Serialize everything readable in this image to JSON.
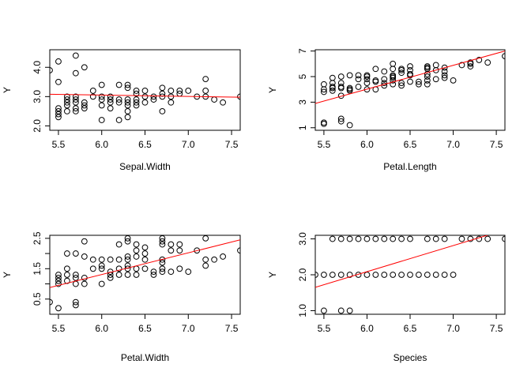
{
  "chart_data": [
    {
      "type": "scatter",
      "title": "",
      "xlabel": "Sepal.Width",
      "ylabel": "Y",
      "xlim": [
        5.4,
        7.6
      ],
      "ylim": [
        1.85,
        4.6
      ],
      "xticks": [
        5.5,
        6.0,
        6.5,
        7.0,
        7.5
      ],
      "yticks": [
        2.0,
        3.0,
        4.0
      ],
      "ytick_labels": [
        "2.0",
        "3.0",
        "4.0"
      ],
      "fit_line": {
        "x": [
          5.4,
          7.6
        ],
        "y": [
          3.08,
          2.98
        ],
        "color": "#ff0000"
      },
      "points": [
        [
          5.4,
          3.9
        ],
        [
          5.5,
          4.2
        ],
        [
          5.5,
          3.5
        ],
        [
          5.5,
          2.6
        ],
        [
          5.5,
          2.5
        ],
        [
          5.5,
          2.4
        ],
        [
          5.5,
          2.3
        ],
        [
          5.6,
          3.0
        ],
        [
          5.6,
          2.9
        ],
        [
          5.6,
          2.8
        ],
        [
          5.6,
          2.7
        ],
        [
          5.6,
          2.5
        ],
        [
          5.7,
          4.4
        ],
        [
          5.7,
          3.8
        ],
        [
          5.7,
          3.0
        ],
        [
          5.7,
          2.9
        ],
        [
          5.7,
          2.8
        ],
        [
          5.7,
          2.6
        ],
        [
          5.7,
          2.5
        ],
        [
          5.8,
          4.0
        ],
        [
          5.8,
          2.8
        ],
        [
          5.8,
          2.7
        ],
        [
          5.8,
          2.6
        ],
        [
          5.9,
          3.2
        ],
        [
          5.9,
          3.0
        ],
        [
          6.0,
          3.4
        ],
        [
          6.0,
          3.0
        ],
        [
          6.0,
          2.9
        ],
        [
          6.0,
          2.7
        ],
        [
          6.0,
          2.2
        ],
        [
          6.1,
          3.0
        ],
        [
          6.1,
          2.9
        ],
        [
          6.1,
          2.8
        ],
        [
          6.1,
          2.6
        ],
        [
          6.2,
          3.4
        ],
        [
          6.2,
          2.9
        ],
        [
          6.2,
          2.8
        ],
        [
          6.2,
          2.2
        ],
        [
          6.3,
          3.4
        ],
        [
          6.3,
          3.3
        ],
        [
          6.3,
          2.9
        ],
        [
          6.3,
          2.8
        ],
        [
          6.3,
          2.7
        ],
        [
          6.3,
          2.5
        ],
        [
          6.3,
          2.3
        ],
        [
          6.4,
          3.2
        ],
        [
          6.4,
          3.1
        ],
        [
          6.4,
          2.9
        ],
        [
          6.4,
          2.8
        ],
        [
          6.4,
          2.7
        ],
        [
          6.5,
          3.2
        ],
        [
          6.5,
          3.0
        ],
        [
          6.5,
          2.8
        ],
        [
          6.6,
          3.0
        ],
        [
          6.6,
          2.9
        ],
        [
          6.7,
          3.3
        ],
        [
          6.7,
          3.1
        ],
        [
          6.7,
          3.0
        ],
        [
          6.7,
          2.5
        ],
        [
          6.8,
          3.2
        ],
        [
          6.8,
          3.0
        ],
        [
          6.8,
          2.8
        ],
        [
          6.9,
          3.2
        ],
        [
          6.9,
          3.1
        ],
        [
          7.0,
          3.2
        ],
        [
          7.1,
          3.0
        ],
        [
          7.2,
          3.6
        ],
        [
          7.2,
          3.2
        ],
        [
          7.2,
          3.0
        ],
        [
          7.3,
          2.9
        ],
        [
          7.4,
          2.8
        ],
        [
          7.6,
          3.0
        ]
      ]
    },
    {
      "type": "scatter",
      "title": "",
      "xlabel": "Petal.Length",
      "ylabel": "Y",
      "xlim": [
        5.4,
        7.6
      ],
      "ylim": [
        0.8,
        7.1
      ],
      "xticks": [
        5.5,
        6.0,
        6.5,
        7.0,
        7.5
      ],
      "yticks": [
        1,
        3,
        5,
        7
      ],
      "ytick_labels": [
        "1",
        "3",
        "5",
        "7"
      ],
      "fit_line": {
        "x": [
          5.4,
          7.6
        ],
        "y": [
          2.9,
          7.0
        ],
        "color": "#ff0000"
      },
      "points": [
        [
          5.5,
          1.4
        ],
        [
          5.5,
          1.3
        ],
        [
          5.5,
          3.8
        ],
        [
          5.5,
          4.0
        ],
        [
          5.5,
          4.4
        ],
        [
          5.6,
          3.9
        ],
        [
          5.6,
          4.1
        ],
        [
          5.6,
          4.2
        ],
        [
          5.6,
          4.5
        ],
        [
          5.6,
          4.9
        ],
        [
          5.7,
          1.7
        ],
        [
          5.7,
          1.5
        ],
        [
          5.7,
          3.5
        ],
        [
          5.7,
          4.1
        ],
        [
          5.7,
          4.2
        ],
        [
          5.7,
          4.5
        ],
        [
          5.7,
          5.0
        ],
        [
          5.8,
          1.2
        ],
        [
          5.8,
          3.9
        ],
        [
          5.8,
          4.0
        ],
        [
          5.8,
          4.1
        ],
        [
          5.8,
          5.1
        ],
        [
          5.9,
          4.2
        ],
        [
          5.9,
          4.8
        ],
        [
          5.9,
          5.1
        ],
        [
          6.0,
          4.0
        ],
        [
          6.0,
          4.5
        ],
        [
          6.0,
          4.8
        ],
        [
          6.0,
          5.0
        ],
        [
          6.0,
          5.1
        ],
        [
          6.1,
          4.0
        ],
        [
          6.1,
          4.6
        ],
        [
          6.1,
          4.7
        ],
        [
          6.1,
          5.6
        ],
        [
          6.2,
          4.3
        ],
        [
          6.2,
          4.5
        ],
        [
          6.2,
          4.8
        ],
        [
          6.2,
          5.4
        ],
        [
          6.3,
          4.4
        ],
        [
          6.3,
          4.7
        ],
        [
          6.3,
          4.9
        ],
        [
          6.3,
          5.0
        ],
        [
          6.3,
          5.1
        ],
        [
          6.3,
          5.6
        ],
        [
          6.3,
          6.0
        ],
        [
          6.4,
          4.3
        ],
        [
          6.4,
          4.5
        ],
        [
          6.4,
          5.3
        ],
        [
          6.4,
          5.5
        ],
        [
          6.4,
          5.6
        ],
        [
          6.5,
          4.6
        ],
        [
          6.5,
          5.1
        ],
        [
          6.5,
          5.2
        ],
        [
          6.5,
          5.5
        ],
        [
          6.5,
          5.8
        ],
        [
          6.6,
          4.4
        ],
        [
          6.6,
          4.6
        ],
        [
          6.7,
          4.4
        ],
        [
          6.7,
          4.7
        ],
        [
          6.7,
          5.0
        ],
        [
          6.7,
          5.2
        ],
        [
          6.7,
          5.6
        ],
        [
          6.7,
          5.7
        ],
        [
          6.7,
          5.8
        ],
        [
          6.8,
          4.8
        ],
        [
          6.8,
          5.5
        ],
        [
          6.8,
          5.9
        ],
        [
          6.9,
          4.9
        ],
        [
          6.9,
          5.1
        ],
        [
          6.9,
          5.4
        ],
        [
          6.9,
          5.7
        ],
        [
          7.0,
          4.7
        ],
        [
          7.1,
          5.9
        ],
        [
          7.2,
          5.8
        ],
        [
          7.2,
          6.0
        ],
        [
          7.2,
          6.1
        ],
        [
          7.3,
          6.3
        ],
        [
          7.4,
          6.1
        ],
        [
          7.6,
          6.6
        ]
      ]
    },
    {
      "type": "scatter",
      "title": "",
      "xlabel": "Petal.Width",
      "ylabel": "Y",
      "xlim": [
        5.4,
        7.6
      ],
      "ylim": [
        0.0,
        2.6
      ],
      "xticks": [
        5.5,
        6.0,
        6.5,
        7.0,
        7.5
      ],
      "yticks": [
        0.5,
        1.0,
        1.5,
        2.0,
        2.5
      ],
      "ytick_labels": [
        "0.5",
        "",
        "1.5",
        "",
        "2.5"
      ],
      "fit_line": {
        "x": [
          5.4,
          7.6
        ],
        "y": [
          0.88,
          2.45
        ],
        "color": "#ff0000"
      },
      "points": [
        [
          5.4,
          0.4
        ],
        [
          5.5,
          1.3
        ],
        [
          5.5,
          1.2
        ],
        [
          5.5,
          1.1
        ],
        [
          5.5,
          1.0
        ],
        [
          5.5,
          0.2
        ],
        [
          5.6,
          2.0
        ],
        [
          5.6,
          1.5
        ],
        [
          5.6,
          1.3
        ],
        [
          5.6,
          1.1
        ],
        [
          5.7,
          2.0
        ],
        [
          5.7,
          1.3
        ],
        [
          5.7,
          1.2
        ],
        [
          5.7,
          1.0
        ],
        [
          5.7,
          0.4
        ],
        [
          5.7,
          0.3
        ],
        [
          5.8,
          2.4
        ],
        [
          5.8,
          1.9
        ],
        [
          5.8,
          1.2
        ],
        [
          5.8,
          1.0
        ],
        [
          5.9,
          1.8
        ],
        [
          5.9,
          1.5
        ],
        [
          6.0,
          1.8
        ],
        [
          6.0,
          1.6
        ],
        [
          6.0,
          1.5
        ],
        [
          6.0,
          1.0
        ],
        [
          6.1,
          1.8
        ],
        [
          6.1,
          1.4
        ],
        [
          6.1,
          1.3
        ],
        [
          6.1,
          1.2
        ],
        [
          6.2,
          2.3
        ],
        [
          6.2,
          1.8
        ],
        [
          6.2,
          1.5
        ],
        [
          6.2,
          1.3
        ],
        [
          6.3,
          2.5
        ],
        [
          6.3,
          2.4
        ],
        [
          6.3,
          1.9
        ],
        [
          6.3,
          1.8
        ],
        [
          6.3,
          1.6
        ],
        [
          6.3,
          1.5
        ],
        [
          6.3,
          1.3
        ],
        [
          6.4,
          2.3
        ],
        [
          6.4,
          2.1
        ],
        [
          6.4,
          1.9
        ],
        [
          6.4,
          1.5
        ],
        [
          6.4,
          1.3
        ],
        [
          6.5,
          2.2
        ],
        [
          6.5,
          2.0
        ],
        [
          6.5,
          1.8
        ],
        [
          6.5,
          1.5
        ],
        [
          6.6,
          1.4
        ],
        [
          6.6,
          1.3
        ],
        [
          6.7,
          2.5
        ],
        [
          6.7,
          2.4
        ],
        [
          6.7,
          2.3
        ],
        [
          6.7,
          1.8
        ],
        [
          6.7,
          1.7
        ],
        [
          6.7,
          1.5
        ],
        [
          6.7,
          1.4
        ],
        [
          6.8,
          2.3
        ],
        [
          6.8,
          2.1
        ],
        [
          6.8,
          1.4
        ],
        [
          6.9,
          2.3
        ],
        [
          6.9,
          2.1
        ],
        [
          6.9,
          1.5
        ],
        [
          7.0,
          1.4
        ],
        [
          7.1,
          2.1
        ],
        [
          7.2,
          2.5
        ],
        [
          7.2,
          1.8
        ],
        [
          7.2,
          1.6
        ],
        [
          7.3,
          1.8
        ],
        [
          7.4,
          1.9
        ],
        [
          7.6,
          2.1
        ]
      ]
    },
    {
      "type": "scatter",
      "title": "",
      "xlabel": "Species",
      "ylabel": "Y",
      "xlim": [
        5.4,
        7.6
      ],
      "ylim": [
        0.9,
        3.1
      ],
      "xticks": [
        5.5,
        6.0,
        6.5,
        7.0,
        7.5
      ],
      "yticks": [
        1.0,
        2.0,
        3.0
      ],
      "ytick_labels": [
        "1.0",
        "2.0",
        "3.0"
      ],
      "fit_line": {
        "x": [
          5.4,
          7.6
        ],
        "y": [
          1.65,
          3.25
        ],
        "color": "#ff0000"
      },
      "points": [
        [
          5.4,
          2.0
        ],
        [
          5.5,
          2.0
        ],
        [
          5.5,
          1.0
        ],
        [
          5.6,
          3.0
        ],
        [
          5.6,
          2.0
        ],
        [
          5.7,
          3.0
        ],
        [
          5.7,
          2.0
        ],
        [
          5.7,
          1.0
        ],
        [
          5.8,
          3.0
        ],
        [
          5.8,
          2.0
        ],
        [
          5.8,
          1.0
        ],
        [
          5.9,
          3.0
        ],
        [
          5.9,
          2.0
        ],
        [
          6.0,
          3.0
        ],
        [
          6.0,
          2.0
        ],
        [
          6.1,
          3.0
        ],
        [
          6.1,
          2.0
        ],
        [
          6.2,
          3.0
        ],
        [
          6.2,
          2.0
        ],
        [
          6.3,
          3.0
        ],
        [
          6.3,
          2.0
        ],
        [
          6.4,
          3.0
        ],
        [
          6.4,
          2.0
        ],
        [
          6.5,
          3.0
        ],
        [
          6.5,
          2.0
        ],
        [
          6.6,
          2.0
        ],
        [
          6.7,
          3.0
        ],
        [
          6.7,
          2.0
        ],
        [
          6.8,
          3.0
        ],
        [
          6.8,
          2.0
        ],
        [
          6.9,
          3.0
        ],
        [
          6.9,
          2.0
        ],
        [
          7.0,
          2.0
        ],
        [
          7.1,
          3.0
        ],
        [
          7.2,
          3.0
        ],
        [
          7.3,
          3.0
        ],
        [
          7.4,
          3.0
        ],
        [
          7.6,
          3.0
        ]
      ]
    }
  ]
}
